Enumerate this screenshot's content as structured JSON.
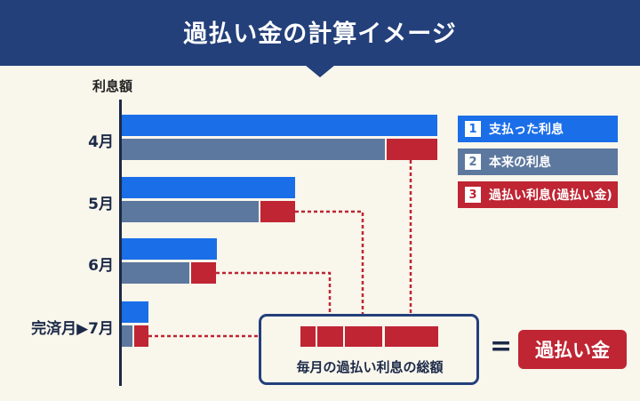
{
  "header": {
    "title": "過払い金の計算イメージ"
  },
  "axis": {
    "label": "利息額"
  },
  "rows": [
    {
      "label": "4月",
      "paid": 1.0,
      "actual": 0.835,
      "overpaid": 0.165
    },
    {
      "label": "5月",
      "paid": 0.55,
      "actual": 0.435,
      "overpaid": 0.115
    },
    {
      "label": "6月",
      "paid": 0.3,
      "actual": 0.215,
      "overpaid": 0.085
    },
    {
      "label": "7月",
      "paid": 0.085,
      "actual": 0.035,
      "overpaid": 0.05,
      "prefix": "完済月▶"
    }
  ],
  "legend": [
    {
      "num": "1",
      "label": "支払った利息",
      "color": "#1a6ee8"
    },
    {
      "num": "2",
      "label": "本来の利息",
      "color": "#5d789e"
    },
    {
      "num": "3",
      "label": "過払い利息(過払い金)",
      "color": "#bf2533"
    }
  ],
  "total": {
    "label": "毎月の過払い利息の総額"
  },
  "equals": "=",
  "result": "過払い金",
  "colors": {
    "header": "#23407a",
    "paid": "#1a6ee8",
    "actual": "#5d789e",
    "overpaid": "#bf2533",
    "connector": "#bf2533"
  }
}
